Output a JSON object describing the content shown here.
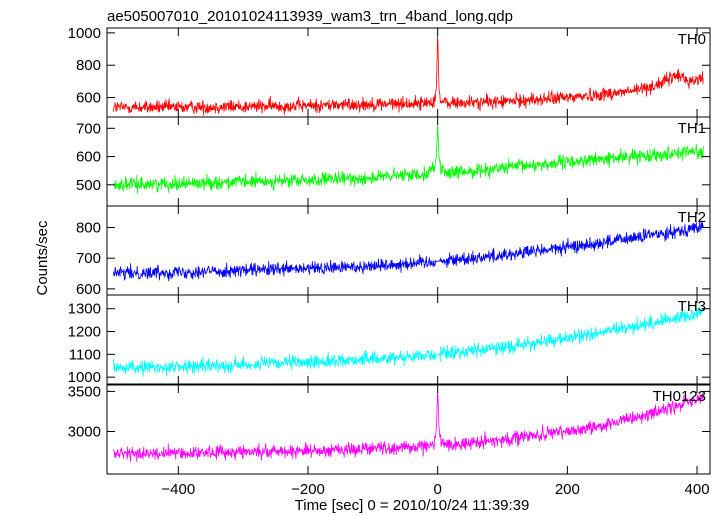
{
  "chart_data": {
    "type": "line",
    "title": "ae505007010_20101024113939_wam3_trn_4band_long.qdp",
    "xlabel": "Time [sec] 0 = 2010/10/24 11:39:39",
    "ylabel": "Counts/sec",
    "xlim": [
      -510,
      420
    ],
    "x_ticks": [
      -400,
      -200,
      0,
      200,
      400
    ],
    "x_tick_labels": [
      "−400",
      "−200",
      "0",
      "200",
      "400"
    ],
    "panels": [
      {
        "name": "TH0",
        "color": "#ff0000",
        "ylim": [
          480,
          1030
        ],
        "y_ticks": [
          600,
          800,
          1000
        ],
        "y_tick_labels": [
          "600",
          "800",
          "1000"
        ],
        "x": [
          -500,
          -400,
          -300,
          -200,
          -100,
          -20,
          -5,
          -2,
          0,
          2,
          5,
          20,
          100,
          200,
          300,
          340,
          370,
          390,
          410
        ],
        "y": [
          540,
          540,
          545,
          550,
          560,
          565,
          580,
          660,
          1020,
          650,
          570,
          565,
          575,
          600,
          640,
          680,
          740,
          700,
          720
        ]
      },
      {
        "name": "TH1",
        "color": "#00ff00",
        "ylim": [
          425,
          740
        ],
        "y_ticks": [
          500,
          600,
          700
        ],
        "y_tick_labels": [
          "500",
          "600",
          "700"
        ],
        "x": [
          -500,
          -400,
          -300,
          -200,
          -100,
          -20,
          -5,
          -2,
          0,
          2,
          5,
          20,
          100,
          200,
          300,
          400,
          410
        ],
        "y": [
          500,
          505,
          510,
          515,
          525,
          540,
          560,
          600,
          720,
          600,
          555,
          540,
          560,
          580,
          600,
          620,
          610
        ]
      },
      {
        "name": "TH2",
        "color": "#0000ff",
        "ylim": [
          580,
          870
        ],
        "y_ticks": [
          600,
          700,
          800
        ],
        "y_tick_labels": [
          "600",
          "700",
          "800"
        ],
        "x": [
          -500,
          -400,
          -300,
          -200,
          -100,
          0,
          100,
          200,
          300,
          400,
          410
        ],
        "y": [
          650,
          655,
          660,
          665,
          675,
          690,
          710,
          735,
          765,
          800,
          805
        ]
      },
      {
        "name": "TH3",
        "color": "#00ffff",
        "ylim": [
          970,
          1360
        ],
        "y_ticks": [
          1000,
          1100,
          1200,
          1300
        ],
        "y_tick_labels": [
          "1000",
          "1100",
          "1200",
          "1300"
        ],
        "x": [
          -500,
          -400,
          -300,
          -200,
          -100,
          0,
          100,
          200,
          300,
          400,
          410
        ],
        "y": [
          1040,
          1045,
          1055,
          1065,
          1080,
          1100,
          1130,
          1170,
          1220,
          1280,
          1300
        ]
      },
      {
        "name": "TH0123",
        "color": "#ff00ff",
        "ylim": [
          2470,
          3580
        ],
        "y_ticks": [
          3000,
          3500
        ],
        "y_tick_labels": [
          "3000",
          "3500"
        ],
        "x": [
          -500,
          -400,
          -300,
          -200,
          -100,
          -20,
          -5,
          -2,
          0,
          2,
          5,
          20,
          100,
          200,
          300,
          400,
          410
        ],
        "y": [
          2720,
          2730,
          2750,
          2760,
          2790,
          2810,
          2860,
          3050,
          3550,
          3050,
          2860,
          2830,
          2900,
          3000,
          3150,
          3400,
          3420
        ]
      }
    ],
    "grid": false,
    "legend": "panel labels at top-right of each panel"
  }
}
